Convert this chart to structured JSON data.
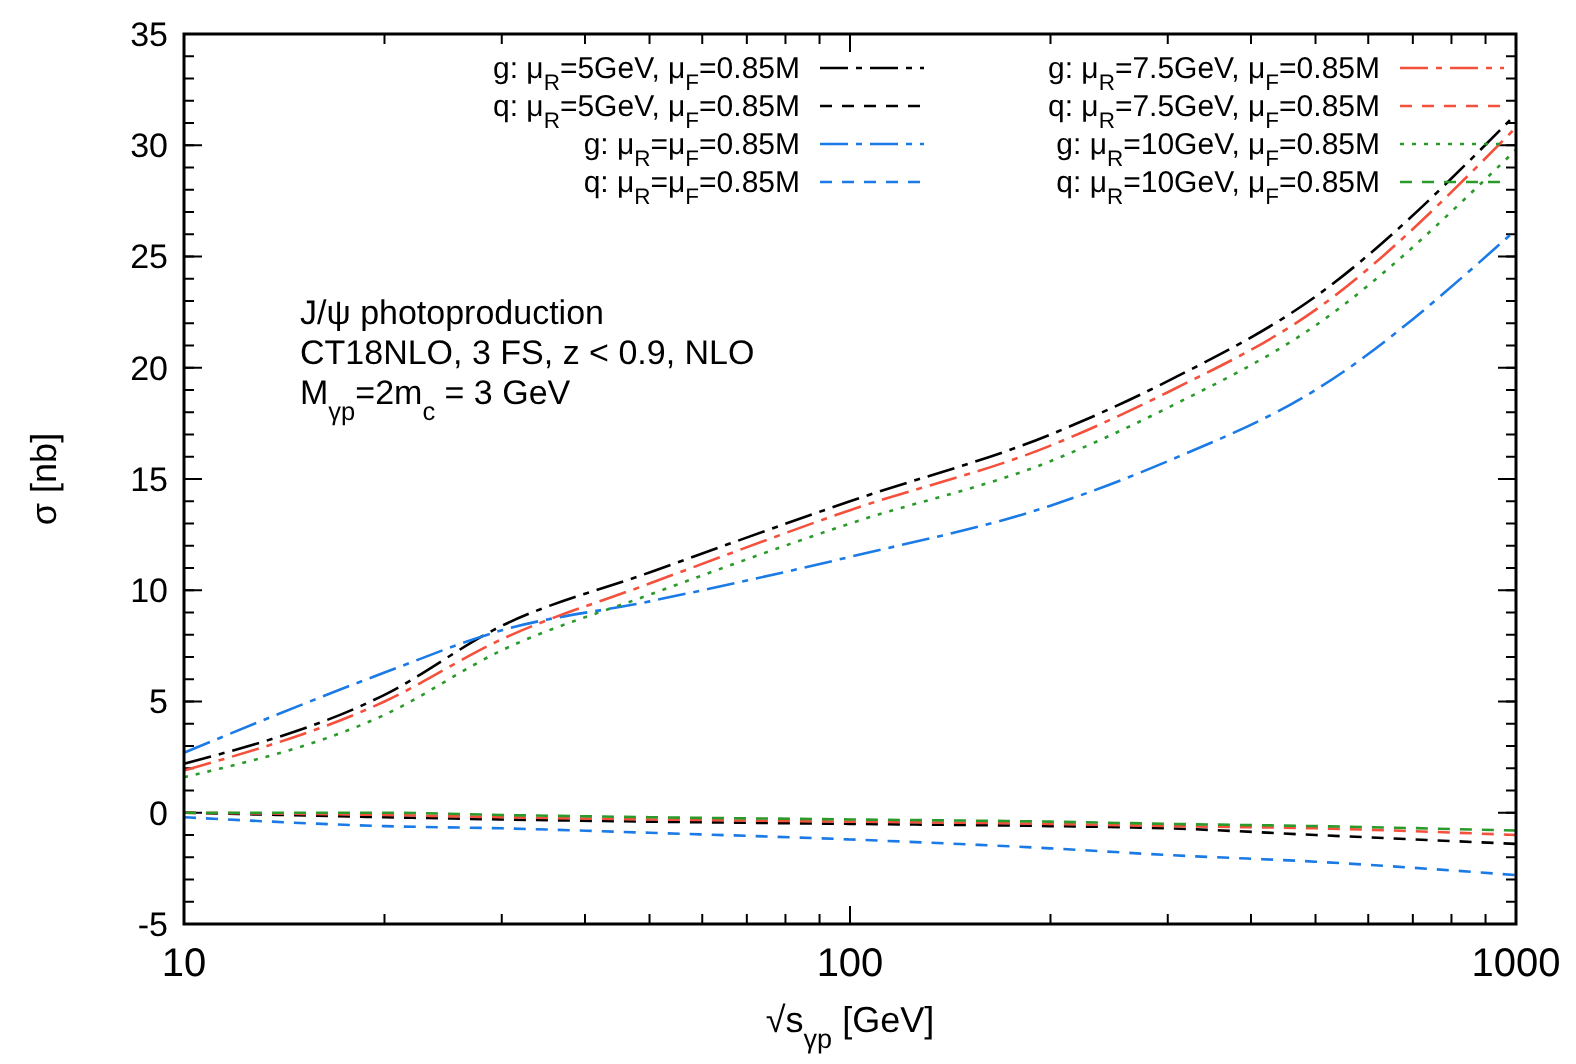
{
  "chart_data": {
    "type": "line",
    "xlabel": "√s$_{γp}$ [GeV]",
    "ylabel": "σ [nb]",
    "log": "x",
    "annotations": [
      "J/ψ photoproduction",
      "CT18NLO, 3 FS, z < 0.9, NLO",
      "M$_{γp}$=2m$_{c}$ = 3 GeV"
    ],
    "x": [
      10,
      20,
      30,
      50,
      100,
      200,
      300,
      500,
      1000
    ],
    "xlim": [
      10,
      1000
    ],
    "ylim": [
      -5,
      35
    ],
    "xticks": [
      10,
      {
        "value": 20,
        "label": null
      },
      {
        "value": 30,
        "label": null
      },
      {
        "value": 40,
        "label": null
      },
      {
        "value": 50,
        "label": null
      },
      {
        "value": 60,
        "label": null
      },
      {
        "value": 70,
        "label": null
      },
      {
        "value": 80,
        "label": null
      },
      {
        "value": 90,
        "label": null
      },
      100,
      {
        "value": 200,
        "label": null
      },
      {
        "value": 300,
        "label": null
      },
      {
        "value": 400,
        "label": null
      },
      {
        "value": 500,
        "label": null
      },
      {
        "value": 600,
        "label": null
      },
      {
        "value": 700,
        "label": null
      },
      {
        "value": 800,
        "label": null
      },
      {
        "value": 900,
        "label": null
      },
      1000
    ],
    "yticks": [
      -5,
      0,
      5,
      10,
      15,
      20,
      25,
      30,
      35
    ],
    "grid": false,
    "legend": "top right",
    "marker": "none",
    "series": [
      {
        "name": "g: μ$_{R}$=5GeV, μ$_{F}$=0.85M",
        "color": "#000000",
        "line_style": "dashed",
        "values": [
          2.2,
          5.3,
          8.4,
          10.8,
          14.0,
          17.0,
          19.4,
          23.2,
          31.4
        ]
      },
      {
        "name": "q: μ$_{R}$=5GeV, μ$_{F}$=0.85M",
        "color": "#000000",
        "line_style": "dashed",
        "values": [
          0.0,
          -0.2,
          -0.3,
          -0.4,
          -0.5,
          -0.6,
          -0.7,
          -1.0,
          -1.4
        ]
      },
      {
        "name": "g: μ$_{R}$=μ$_{F}$=0.85M",
        "color": "#1a7ae6",
        "line_style": "dashed",
        "values": [
          2.7,
          6.3,
          8.2,
          9.5,
          11.5,
          13.8,
          15.8,
          19.0,
          26.2
        ]
      },
      {
        "name": "q: μ$_{R}$=μ$_{F}$=0.85M",
        "color": "#1a7ae6",
        "line_style": "dashed",
        "values": [
          -0.2,
          -0.6,
          -0.7,
          -0.9,
          -1.2,
          -1.6,
          -1.9,
          -2.2,
          -2.8
        ]
      },
      {
        "name": "g: μ$_{R}$=7.5GeV, μ$_{F}$=0.85M",
        "color": "#f5503c",
        "line_style": "dashed",
        "values": [
          1.9,
          5.0,
          7.8,
          10.3,
          13.6,
          16.5,
          18.9,
          22.6,
          30.8
        ]
      },
      {
        "name": "q: μ$_{R}$=7.5GeV, μ$_{F}$=0.85M",
        "color": "#f5503c",
        "line_style": "dashed",
        "values": [
          0.0,
          -0.1,
          -0.2,
          -0.3,
          -0.4,
          -0.5,
          -0.6,
          -0.7,
          -1.0
        ]
      },
      {
        "name": "g: μ$_{R}$=10GeV, μ$_{F}$=0.85M",
        "color": "#2a9a2a",
        "line_style": "dotted",
        "values": [
          1.6,
          4.4,
          7.3,
          9.8,
          13.0,
          15.8,
          18.2,
          21.9,
          29.8
        ]
      },
      {
        "name": "q: μ$_{R}$=10GeV, μ$_{F}$=0.85M",
        "color": "#2a9a2a",
        "line_style": "dashed",
        "values": [
          0.0,
          0.0,
          -0.1,
          -0.2,
          -0.3,
          -0.4,
          -0.5,
          -0.6,
          -0.8
        ]
      }
    ]
  }
}
